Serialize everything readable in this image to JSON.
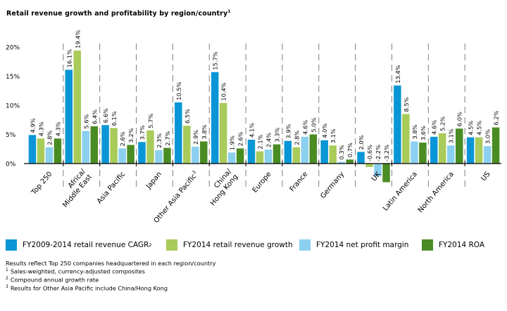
{
  "chart_data": {
    "type": "bar",
    "title": "Retail revenue growth and profitability by region/country",
    "title_footnote": "1",
    "xlabel": "",
    "ylabel": "",
    "ylim": [
      -3.5,
      20
    ],
    "yticks": [
      0,
      5,
      10,
      15,
      20
    ],
    "ytick_labels": [
      "0%",
      "5%",
      "10%",
      "15%",
      "20%"
    ],
    "grid": false,
    "legend_position": "bottom",
    "categories": [
      "Top 250",
      "Africa/\nMiddle East",
      "Asia Pacific",
      "Japan",
      "Other Asia Pacific",
      "China/\nHong Kong",
      "Europe",
      "France",
      "Germany",
      "UK",
      "Latin America",
      "North America",
      "US"
    ],
    "category_footnotes": [
      "",
      "",
      "",
      "",
      "3",
      "",
      "",
      "",
      "",
      "",
      "",
      "",
      ""
    ],
    "series": [
      {
        "name": "FY2009-2014 retail revenue CAGR",
        "footnote": "2",
        "color": "#0a96d6",
        "values": [
          4.9,
          16.1,
          6.6,
          3.7,
          10.5,
          15.7,
          4.1,
          3.9,
          4.0,
          2.0,
          13.4,
          4.6,
          4.5
        ],
        "labels": [
          "4.9%",
          "16.1%",
          "6.6%",
          "3.7%",
          "10.5%",
          "15.7%",
          "4.1%",
          "3.9%",
          "4.0%",
          "2.0%",
          "13.4%",
          "4.6%",
          "4.5%"
        ]
      },
      {
        "name": "FY2014 retail revenue growth",
        "footnote": "",
        "color": "#a8cb5a",
        "values": [
          4.3,
          19.4,
          6.1,
          5.7,
          6.5,
          10.4,
          2.1,
          2.8,
          3.1,
          -0.6,
          8.5,
          5.2,
          4.5
        ],
        "labels": [
          "4.3%",
          "19.4%",
          "6.1%",
          "5.7%",
          "6.5%",
          "10.4%",
          "2.1%",
          "2.8%",
          "3.1%",
          "-0.6%",
          "8.5%",
          "5.2%",
          "4.5%"
        ]
      },
      {
        "name": "FY2014 net profit margin",
        "footnote": "",
        "color": "#8bd0ef",
        "values": [
          2.8,
          5.6,
          2.6,
          2.3,
          2.9,
          1.9,
          2.4,
          4.6,
          0.3,
          -2.2,
          3.8,
          3.1,
          3.0
        ],
        "labels": [
          "2.8%",
          "5.6%",
          "2.6%",
          "2.3%",
          "2.9%",
          "1.9%",
          "2.4%",
          "4.6%",
          "0.3%",
          "-2.2%",
          "3.8%",
          "3.1%",
          "3.0%"
        ]
      },
      {
        "name": "FY2014 ROA",
        "footnote": "",
        "color": "#4a8c24",
        "values": [
          4.3,
          6.4,
          3.2,
          2.7,
          3.8,
          2.6,
          3.3,
          5.0,
          0.7,
          -3.2,
          3.6,
          6.0,
          6.2
        ],
        "labels": [
          "4.3%",
          "6.4%",
          "3.2%",
          "2.7%",
          "3.8%",
          "2.6%",
          "3.3%",
          "5.0%",
          "0.7%",
          "-3.2%",
          "3.6%",
          "6.0%",
          "6.2%"
        ]
      }
    ]
  },
  "legend": {
    "items": [
      {
        "label": "FY2009-2014 retail revenue CAGR",
        "sup": "2",
        "color": "#0a96d6"
      },
      {
        "label": "FY2014 retail revenue growth",
        "sup": "",
        "color": "#a8cb5a"
      },
      {
        "label": "FY2014 net profit margin",
        "sup": "",
        "color": "#8bd0ef"
      },
      {
        "label": "FY2014 ROA",
        "sup": "",
        "color": "#4a8c24"
      }
    ]
  },
  "notes": {
    "main": "Results reflect Top 250 companies headquartered in each region/country",
    "footnotes": [
      {
        "mark": "1",
        "text": "Sales-weighted, currency-adjusted composites"
      },
      {
        "mark": "2",
        "text": "Compound annual growth rate"
      },
      {
        "mark": "3",
        "text": "Results for Other Asia Pacific include China/Hong Kong"
      }
    ]
  }
}
